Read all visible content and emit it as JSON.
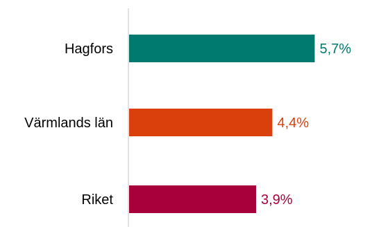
{
  "chart_data": {
    "type": "bar",
    "orientation": "horizontal",
    "categories": [
      "Hagfors",
      "Värmlands län",
      "Riket"
    ],
    "values": [
      5.7,
      4.4,
      3.9
    ],
    "value_labels": [
      "5,7%",
      "4,4%",
      "3,9%"
    ],
    "colors": [
      "#007a6e",
      "#d9400c",
      "#a8003a"
    ],
    "unit": "%",
    "xlim": [
      0,
      6.5
    ],
    "grid": false,
    "axis_line_color": "#d9d9d9",
    "title": "",
    "xlabel": "",
    "ylabel": ""
  }
}
